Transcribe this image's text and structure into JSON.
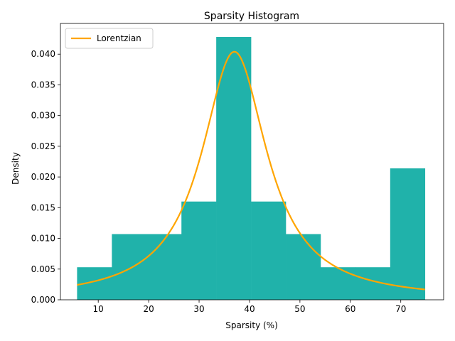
{
  "chart_data": {
    "type": "bar",
    "title": "Sparsity Histogram",
    "xlabel": "Sparsity (%)",
    "ylabel": "Density",
    "xlim": [
      2.5,
      78.5
    ],
    "ylim": [
      0,
      0.045
    ],
    "xticks": [
      10,
      20,
      30,
      40,
      50,
      60,
      70
    ],
    "yticks": [
      0.0,
      0.005,
      0.01,
      0.015,
      0.02,
      0.025,
      0.03,
      0.035,
      0.04
    ],
    "ytick_labels": [
      "0.000",
      "0.005",
      "0.010",
      "0.015",
      "0.020",
      "0.025",
      "0.030",
      "0.035",
      "0.040"
    ],
    "grid": false,
    "legend_position": "top-left",
    "histogram": {
      "bin_edges": [
        5.8,
        12.7,
        19.6,
        26.5,
        33.4,
        40.3,
        47.2,
        54.1,
        61.0,
        67.9,
        74.8
      ],
      "densities": [
        0.0053,
        0.0107,
        0.0107,
        0.016,
        0.0428,
        0.016,
        0.0107,
        0.0053,
        0.0053,
        0.0214
      ],
      "color": "#20b2aa"
    },
    "series": [
      {
        "name": "Lorentzian",
        "kind": "line",
        "color": "#ffa500",
        "x0": 37.0,
        "gamma": 7.88,
        "x_range": [
          5.8,
          74.8
        ]
      }
    ]
  }
}
